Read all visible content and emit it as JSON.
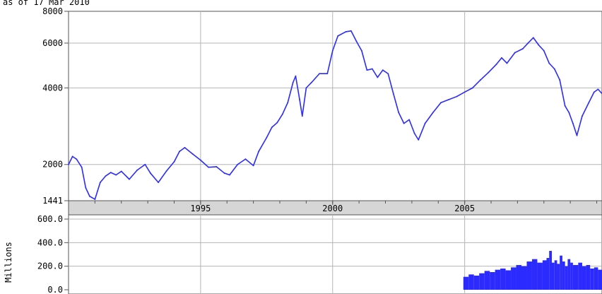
{
  "caption": "as of 17 Mar 2010",
  "colors": {
    "series": "#2b2bff",
    "grid": "#b4b4b4",
    "axis_band": "#d6d6d6",
    "frame": "#555555"
  },
  "chart_data": [
    {
      "type": "line",
      "name": "price",
      "x_range": [
        1990.0,
        2010.2
      ],
      "yscale": "log",
      "ylim": [
        1441,
        8000
      ],
      "yticks": [
        {
          "value": 8000,
          "label": "8000"
        },
        {
          "value": 6000,
          "label": "6000"
        },
        {
          "value": 4000,
          "label": "4000"
        },
        {
          "value": 2000,
          "label": "2000"
        },
        {
          "value": 1441,
          "label": "1441"
        }
      ],
      "xticks": [
        {
          "value": 1995,
          "label": "1995"
        },
        {
          "value": 2000,
          "label": "2000"
        },
        {
          "value": 2005,
          "label": "2005"
        }
      ],
      "grid": true,
      "points": [
        [
          1990.0,
          2000
        ],
        [
          1990.15,
          2150
        ],
        [
          1990.3,
          2100
        ],
        [
          1990.5,
          1950
        ],
        [
          1990.65,
          1620
        ],
        [
          1990.8,
          1500
        ],
        [
          1991.0,
          1460
        ],
        [
          1991.2,
          1700
        ],
        [
          1991.4,
          1800
        ],
        [
          1991.6,
          1860
        ],
        [
          1991.8,
          1820
        ],
        [
          1992.0,
          1880
        ],
        [
          1992.3,
          1750
        ],
        [
          1992.6,
          1900
        ],
        [
          1992.9,
          2000
        ],
        [
          1993.1,
          1850
        ],
        [
          1993.4,
          1700
        ],
        [
          1993.7,
          1880
        ],
        [
          1994.0,
          2050
        ],
        [
          1994.2,
          2250
        ],
        [
          1994.4,
          2330
        ],
        [
          1994.7,
          2200
        ],
        [
          1995.0,
          2080
        ],
        [
          1995.3,
          1950
        ],
        [
          1995.6,
          1960
        ],
        [
          1995.9,
          1850
        ],
        [
          1996.1,
          1820
        ],
        [
          1996.4,
          2000
        ],
        [
          1996.7,
          2100
        ],
        [
          1997.0,
          1980
        ],
        [
          1997.2,
          2250
        ],
        [
          1997.5,
          2550
        ],
        [
          1997.7,
          2800
        ],
        [
          1997.9,
          2920
        ],
        [
          1998.1,
          3150
        ],
        [
          1998.3,
          3500
        ],
        [
          1998.5,
          4200
        ],
        [
          1998.6,
          4450
        ],
        [
          1998.75,
          3600
        ],
        [
          1998.85,
          3100
        ],
        [
          1999.0,
          4000
        ],
        [
          1999.2,
          4200
        ],
        [
          1999.5,
          4550
        ],
        [
          1999.8,
          4550
        ],
        [
          2000.0,
          5600
        ],
        [
          2000.2,
          6400
        ],
        [
          2000.5,
          6650
        ],
        [
          2000.7,
          6700
        ],
        [
          2000.9,
          6100
        ],
        [
          2001.1,
          5600
        ],
        [
          2001.3,
          4700
        ],
        [
          2001.5,
          4750
        ],
        [
          2001.7,
          4400
        ],
        [
          2001.9,
          4700
        ],
        [
          2002.1,
          4550
        ],
        [
          2002.3,
          3800
        ],
        [
          2002.5,
          3200
        ],
        [
          2002.7,
          2900
        ],
        [
          2002.9,
          3000
        ],
        [
          2003.1,
          2650
        ],
        [
          2003.25,
          2500
        ],
        [
          2003.5,
          2900
        ],
        [
          2003.8,
          3200
        ],
        [
          2004.1,
          3500
        ],
        [
          2004.4,
          3600
        ],
        [
          2004.7,
          3700
        ],
        [
          2005.0,
          3850
        ],
        [
          2005.3,
          4000
        ],
        [
          2005.6,
          4300
        ],
        [
          2005.9,
          4600
        ],
        [
          2006.2,
          4950
        ],
        [
          2006.4,
          5250
        ],
        [
          2006.6,
          5000
        ],
        [
          2006.9,
          5500
        ],
        [
          2007.2,
          5700
        ],
        [
          2007.4,
          6000
        ],
        [
          2007.6,
          6300
        ],
        [
          2007.8,
          5900
        ],
        [
          2008.0,
          5600
        ],
        [
          2008.2,
          5000
        ],
        [
          2008.4,
          4750
        ],
        [
          2008.6,
          4300
        ],
        [
          2008.8,
          3400
        ],
        [
          2008.95,
          3200
        ],
        [
          2009.1,
          2900
        ],
        [
          2009.25,
          2600
        ],
        [
          2009.45,
          3100
        ],
        [
          2009.7,
          3500
        ],
        [
          2009.9,
          3850
        ],
        [
          2010.05,
          3950
        ],
        [
          2010.2,
          3800
        ]
      ]
    },
    {
      "type": "bar",
      "name": "volume",
      "ylabel": "Millions",
      "x_range": [
        1990.0,
        2010.2
      ],
      "ylim": [
        0,
        600
      ],
      "yticks": [
        {
          "value": 600,
          "label": "600.0"
        },
        {
          "value": 400,
          "label": "400.0"
        },
        {
          "value": 200,
          "label": "200.0"
        },
        {
          "value": 0,
          "label": "0.0"
        }
      ],
      "grid": true,
      "points": [
        [
          2004.95,
          110
        ],
        [
          2005.15,
          130
        ],
        [
          2005.35,
          120
        ],
        [
          2005.55,
          140
        ],
        [
          2005.75,
          160
        ],
        [
          2005.95,
          150
        ],
        [
          2006.15,
          170
        ],
        [
          2006.35,
          180
        ],
        [
          2006.55,
          165
        ],
        [
          2006.75,
          190
        ],
        [
          2006.95,
          210
        ],
        [
          2007.15,
          200
        ],
        [
          2007.35,
          240
        ],
        [
          2007.55,
          260
        ],
        [
          2007.75,
          230
        ],
        [
          2007.95,
          250
        ],
        [
          2008.1,
          270
        ],
        [
          2008.2,
          330
        ],
        [
          2008.3,
          230
        ],
        [
          2008.4,
          250
        ],
        [
          2008.5,
          220
        ],
        [
          2008.6,
          290
        ],
        [
          2008.7,
          240
        ],
        [
          2008.8,
          200
        ],
        [
          2008.9,
          260
        ],
        [
          2009.0,
          230
        ],
        [
          2009.1,
          210
        ],
        [
          2009.3,
          230
        ],
        [
          2009.45,
          200
        ],
        [
          2009.6,
          210
        ],
        [
          2009.75,
          180
        ],
        [
          2009.9,
          190
        ],
        [
          2010.05,
          170
        ],
        [
          2010.2,
          160
        ]
      ]
    }
  ]
}
